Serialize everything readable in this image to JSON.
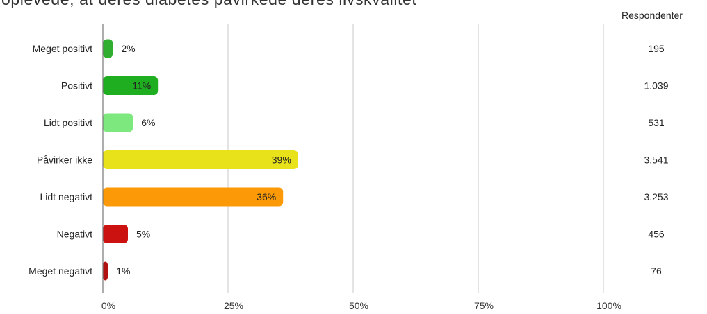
{
  "header": {
    "title": "oplevede, at deres diabetes påvirkede deres livskvalitet",
    "respondents_label": "Respondenter"
  },
  "chart_data": {
    "type": "bar",
    "orientation": "horizontal",
    "title": "oplevede, at deres diabetes påvirkede deres livskvalitet",
    "categories": [
      "Meget positivt",
      "Positivt",
      "Lidt positivt",
      "Påvirker ikke",
      "Lidt negativt",
      "Negativt",
      "Meget negativt"
    ],
    "values": [
      2,
      11,
      6,
      39,
      36,
      5,
      1
    ],
    "value_labels": [
      "2%",
      "11%",
      "6%",
      "39%",
      "36%",
      "5%",
      "1%"
    ],
    "respondents": [
      "195",
      "1.039",
      "531",
      "3.541",
      "3.253",
      "456",
      "76"
    ],
    "colors": [
      "#2fae2f",
      "#1fae1f",
      "#7de87d",
      "#e8e21a",
      "#fb9a06",
      "#cc1111",
      "#b11111"
    ],
    "x_ticks": [
      "0%",
      "25%",
      "50%",
      "75%",
      "100%"
    ],
    "xlim": [
      0,
      100
    ],
    "grid": true
  }
}
